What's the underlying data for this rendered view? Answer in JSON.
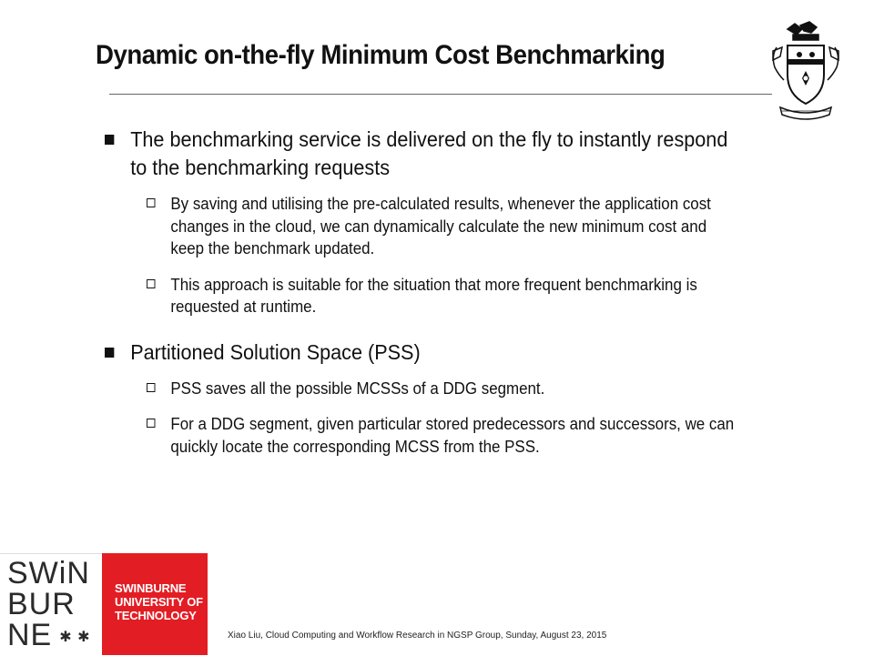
{
  "slide": {
    "title": "Dynamic on-the-fly Minimum Cost Benchmarking",
    "bullets": [
      {
        "text": "The benchmarking service is delivered on the fly to instantly respond to the benchmarking requests",
        "sub": [
          "By saving and utilising the pre-calculated results, whenever the application cost changes in the cloud, we can dynamically calculate the new minimum cost and keep the benchmark updated.",
          "This approach is suitable for the situation that more frequent benchmarking is requested at runtime."
        ]
      },
      {
        "text": "Partitioned Solution Space (PSS)",
        "sub": [
          "PSS saves all the possible MCSSs of a DDG segment.",
          "For a DDG segment, given particular stored predecessors and successors, we can quickly locate the corresponding MCSS from the PSS."
        ]
      }
    ]
  },
  "logo": {
    "mark_row1": "SWiN",
    "mark_row2": "BUR",
    "mark_row3": "NE",
    "name_line1": "SWINBURNE",
    "name_line2": "UNIVERSITY OF",
    "name_line3": "TECHNOLOGY",
    "brand_color": "#e31d24"
  },
  "footer": {
    "text": "Xiao Liu, Cloud Computing and Workflow Research in NGSP Group, Sunday, August 23, 2015"
  }
}
